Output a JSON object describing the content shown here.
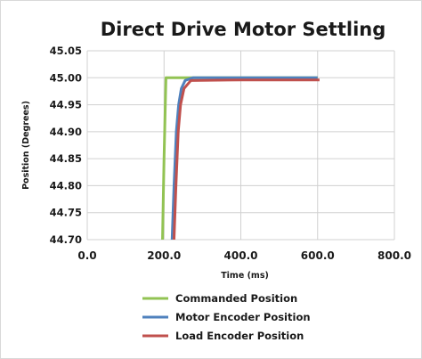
{
  "chart_data": {
    "type": "line",
    "title": "Direct Drive Motor Settling",
    "xlabel": "Time (ms)",
    "ylabel": "Position (Degrees)",
    "xlim": [
      0,
      800
    ],
    "ylim": [
      44.7,
      45.05
    ],
    "x_ticks": [
      "0.0",
      "200.0",
      "400.0",
      "600.0",
      "800.0"
    ],
    "y_ticks": [
      "44.70",
      "44.75",
      "44.80",
      "44.85",
      "44.90",
      "44.95",
      "45.00",
      "45.05"
    ],
    "grid": true,
    "legend_position": "bottom",
    "series": [
      {
        "name": "Commanded Position",
        "color": "#92c353",
        "points": [
          [
            196,
            44.7
          ],
          [
            200,
            44.85
          ],
          [
            205,
            45.0
          ],
          [
            400,
            45.0
          ],
          [
            600,
            45.0
          ]
        ]
      },
      {
        "name": "Motor Encoder Position",
        "color": "#4f81bd",
        "points": [
          [
            221,
            44.7
          ],
          [
            226,
            44.8
          ],
          [
            232,
            44.9
          ],
          [
            238,
            44.95
          ],
          [
            245,
            44.98
          ],
          [
            255,
            44.995
          ],
          [
            275,
            45.0
          ],
          [
            400,
            45.0
          ],
          [
            600,
            45.0
          ]
        ]
      },
      {
        "name": "Load Encoder Position",
        "color": "#c0504d",
        "points": [
          [
            226,
            44.7
          ],
          [
            231,
            44.8
          ],
          [
            237,
            44.9
          ],
          [
            243,
            44.95
          ],
          [
            252,
            44.98
          ],
          [
            270,
            44.995
          ],
          [
            400,
            44.996
          ],
          [
            605,
            44.996
          ]
        ]
      }
    ]
  }
}
